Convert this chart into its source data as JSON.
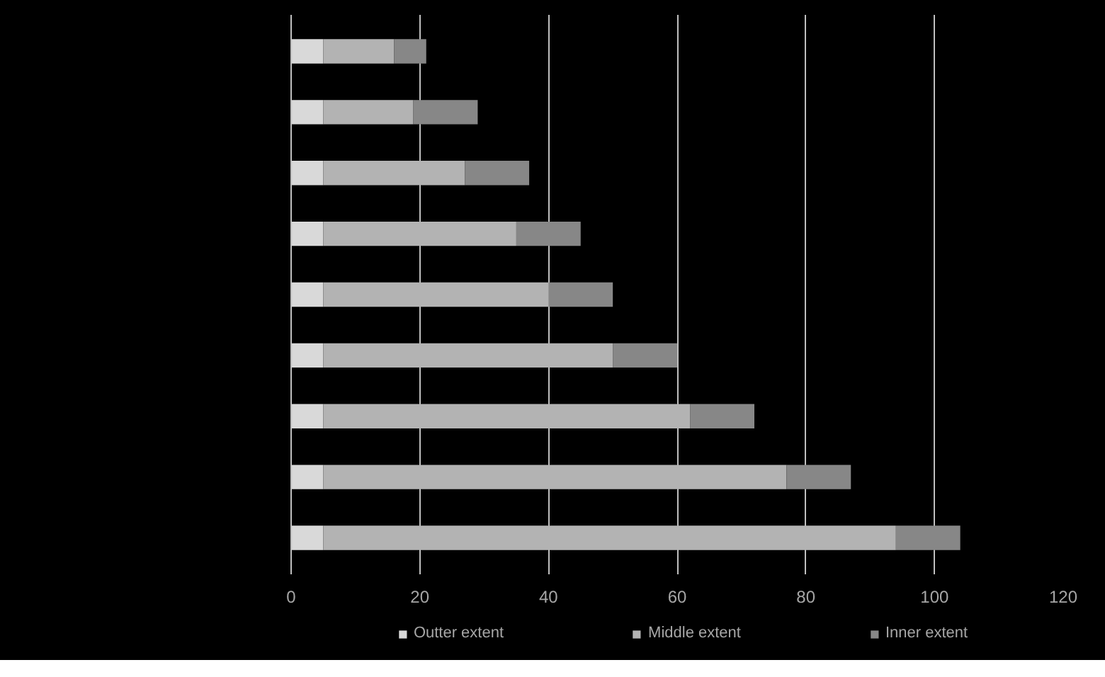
{
  "chart_data": {
    "type": "bar",
    "orientation": "horizontal",
    "stacked": true,
    "categories": [
      null,
      null,
      null,
      null,
      null,
      null,
      null,
      null,
      null
    ],
    "series": [
      {
        "name": "Outter extent",
        "color": "#d9d9d9",
        "values": [
          5,
          5,
          5,
          5,
          5,
          5,
          5,
          5,
          5
        ]
      },
      {
        "name": "Middle extent",
        "color": "#b3b3b3",
        "values": [
          11,
          14,
          22,
          30,
          35,
          45,
          57,
          72,
          89
        ]
      },
      {
        "name": "Inner extent",
        "color": "#878787",
        "values": [
          5,
          10,
          10,
          10,
          10,
          10,
          10,
          10,
          10
        ]
      }
    ],
    "xlim": [
      0,
      120
    ],
    "xticks": [
      0,
      20,
      40,
      60,
      80,
      100,
      120
    ],
    "grid": "x",
    "legend": "bottom"
  }
}
